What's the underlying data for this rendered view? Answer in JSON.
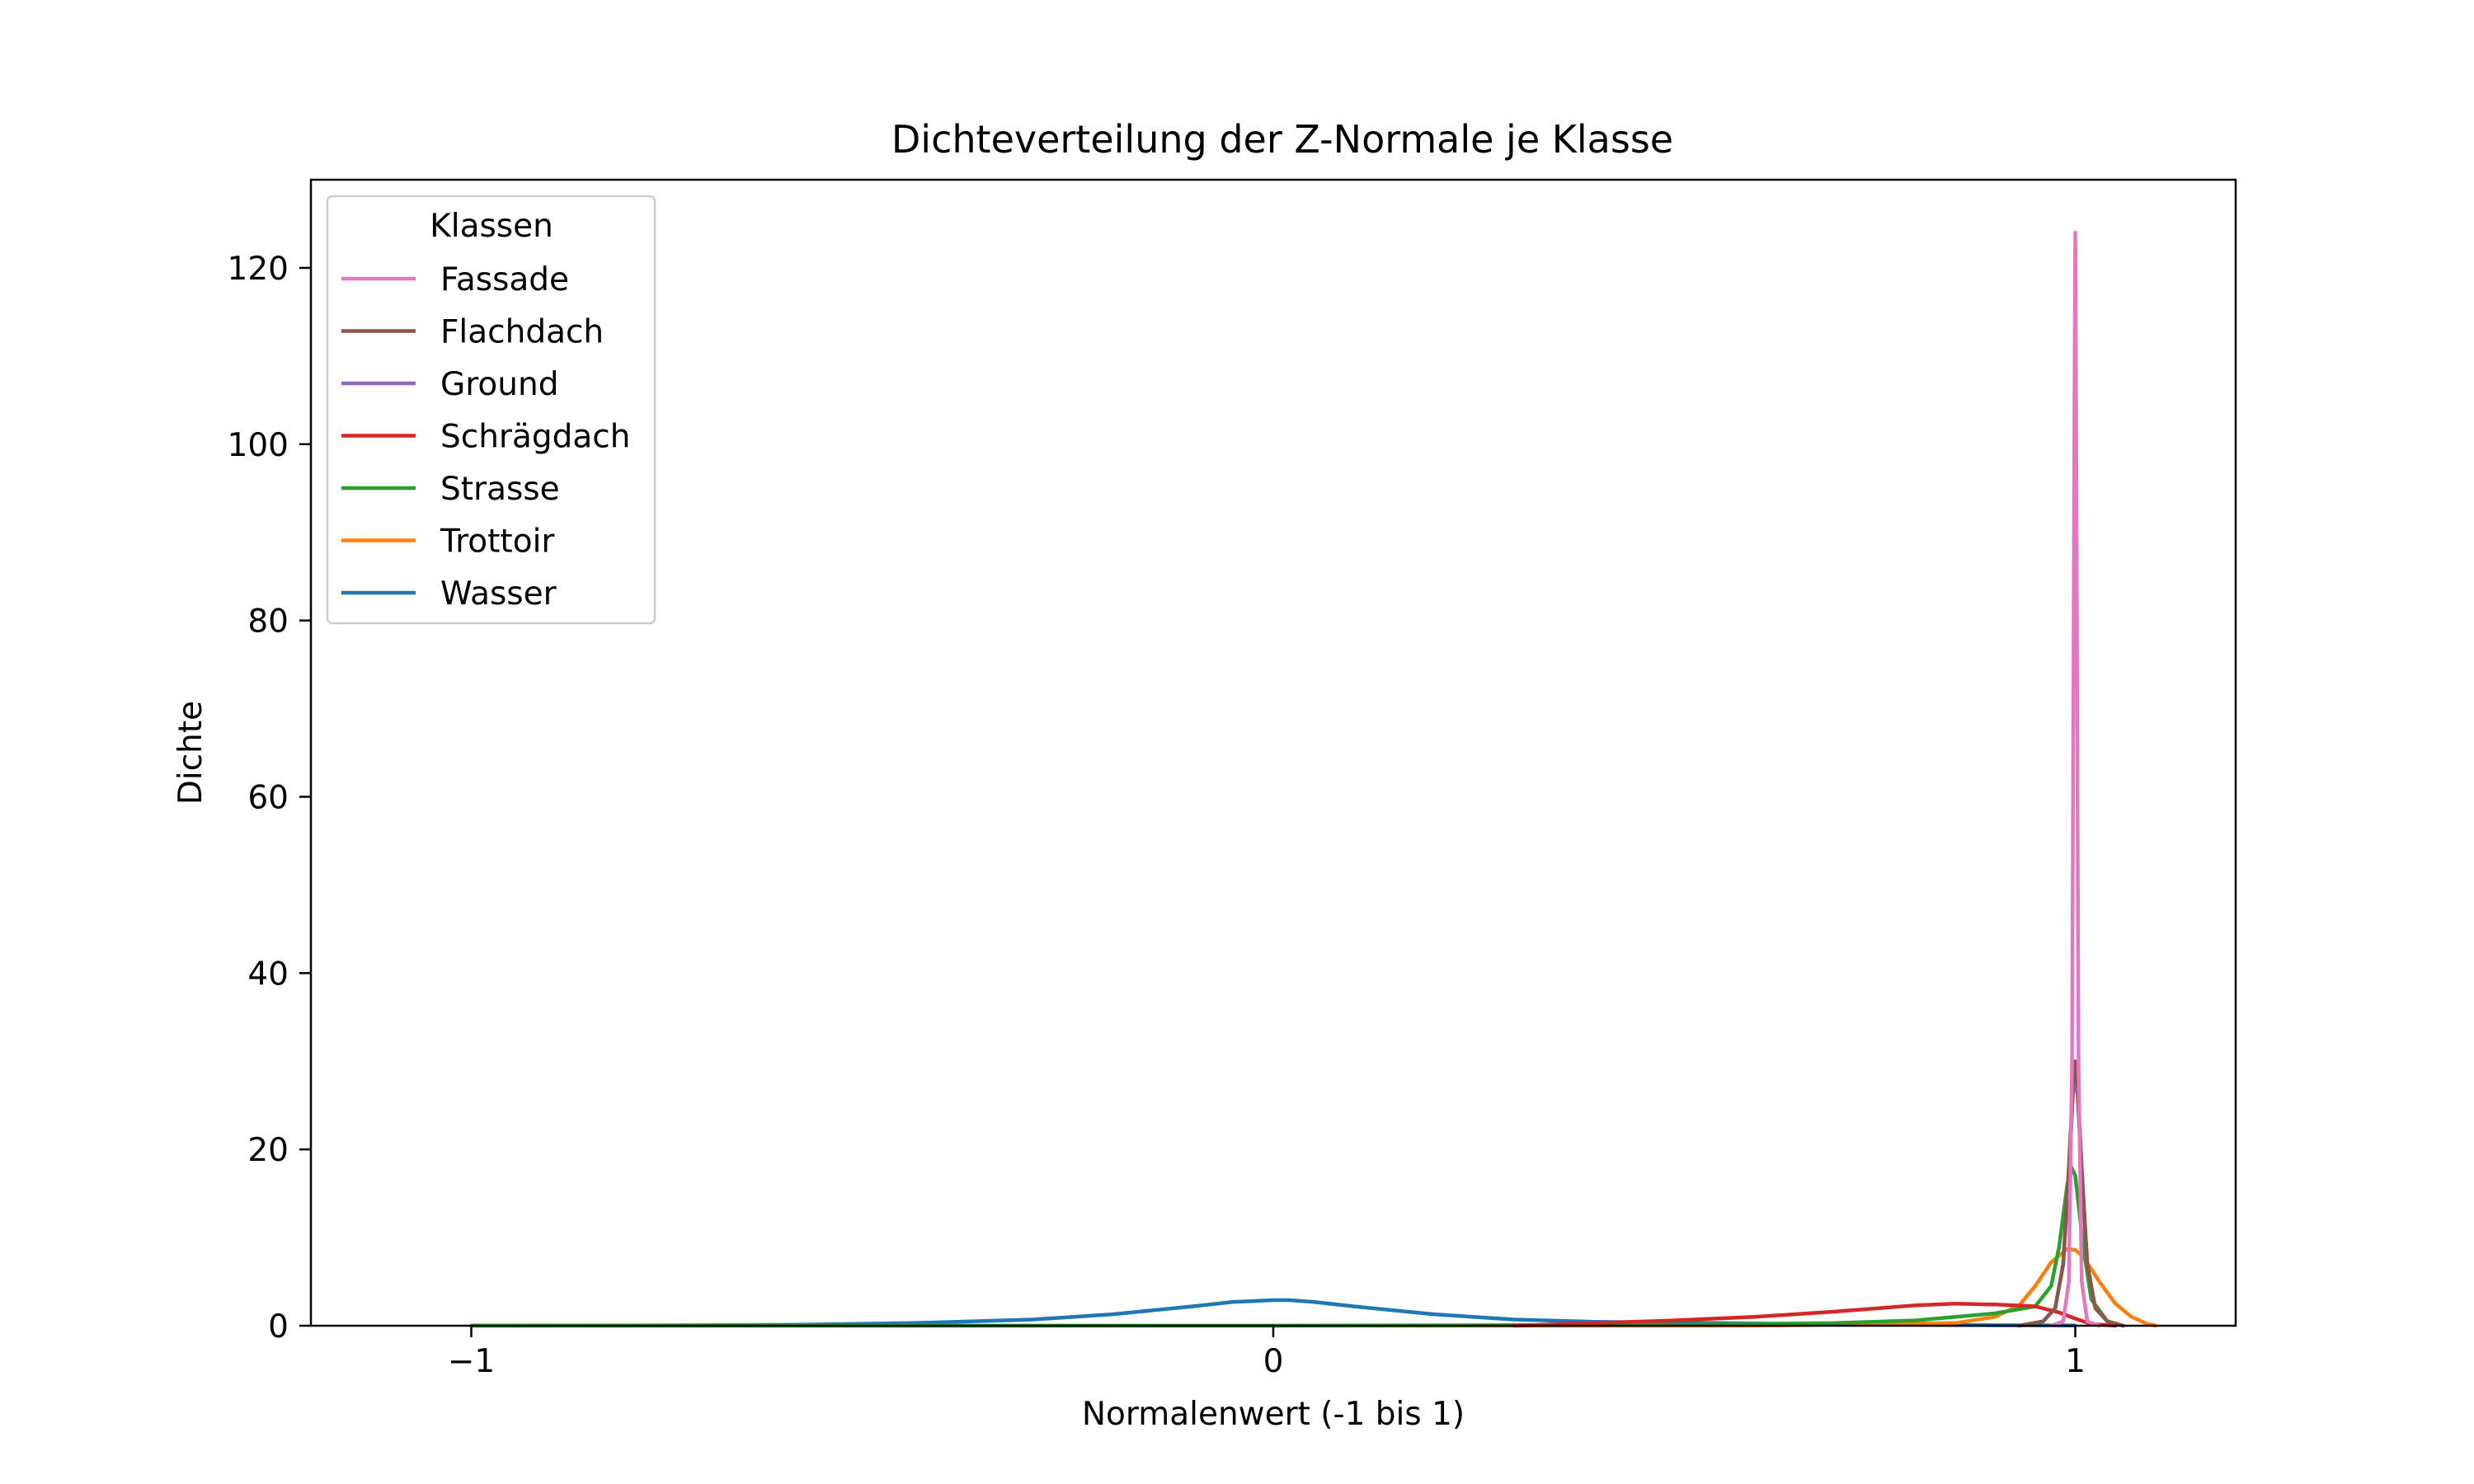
{
  "chart_data": {
    "type": "line",
    "title": "Dichteverteilung der Z-Normale je Klasse",
    "xlabel": "Normalenwert (-1 bis 1)",
    "ylabel": "Dichte",
    "xlim": [
      -1.2,
      1.2
    ],
    "ylim": [
      0,
      130
    ],
    "xticks": [
      -1,
      0,
      1
    ],
    "xtick_labels": [
      "−1",
      "0",
      "1"
    ],
    "yticks": [
      0,
      20,
      40,
      60,
      80,
      100,
      120
    ],
    "ytick_labels": [
      "0",
      "20",
      "40",
      "60",
      "80",
      "100",
      "120"
    ],
    "grid": false,
    "legend": {
      "title": "Klassen",
      "position": "upper left"
    },
    "series": [
      {
        "name": "Fassade",
        "color": "#e377c2",
        "x": [
          0.97,
          0.985,
          0.992,
          0.996,
          0.999,
          1.0,
          1.001,
          1.004,
          1.008,
          1.015,
          1.03
        ],
        "y": [
          0,
          0.5,
          5,
          30,
          105,
          124,
          105,
          30,
          5,
          0.5,
          0
        ]
      },
      {
        "name": "Flachdach",
        "color": "#8c564b",
        "x": [
          0.93,
          0.96,
          0.975,
          0.985,
          0.992,
          0.997,
          1.0,
          1.003,
          1.008,
          1.015,
          1.025,
          1.04,
          1.06
        ],
        "y": [
          0,
          0.5,
          2,
          7,
          18,
          27,
          30,
          27,
          18,
          7,
          2,
          0.5,
          0
        ]
      },
      {
        "name": "Ground",
        "color": "#9467bd",
        "x": [
          0.93,
          0.96,
          0.975,
          0.985,
          0.992,
          0.997,
          1.0,
          1.003,
          1.008,
          1.015,
          1.025,
          1.04,
          1.06
        ],
        "y": [
          0,
          0.5,
          2,
          7,
          17,
          26,
          29,
          26,
          17,
          7,
          2,
          0.5,
          0
        ]
      },
      {
        "name": "Schrägdach",
        "color": "#d62728",
        "x": [
          0.3,
          0.4,
          0.5,
          0.6,
          0.7,
          0.8,
          0.85,
          0.9,
          0.95,
          0.98,
          1.0,
          1.02,
          1.05
        ],
        "y": [
          0,
          0.3,
          0.6,
          1.0,
          1.6,
          2.3,
          2.5,
          2.4,
          2.2,
          1.5,
          0.8,
          0.2,
          0
        ]
      },
      {
        "name": "Strasse",
        "color": "#2ca02c",
        "x": [
          -1.0,
          -0.5,
          0.0,
          0.5,
          0.7,
          0.8,
          0.9,
          0.95,
          0.97,
          0.98,
          0.99,
          0.995,
          1.0,
          1.01,
          1.02,
          1.04,
          1.06
        ],
        "y": [
          0,
          0,
          0,
          0.1,
          0.3,
          0.6,
          1.4,
          2.2,
          4.5,
          9,
          16,
          18,
          17,
          9,
          3,
          0.5,
          0
        ]
      },
      {
        "name": "Trottoir",
        "color": "#ff7f0e",
        "x": [
          -1.0,
          0.0,
          0.6,
          0.85,
          0.9,
          0.93,
          0.95,
          0.97,
          0.99,
          1.0,
          1.01,
          1.03,
          1.05,
          1.07,
          1.09,
          1.1
        ],
        "y": [
          0,
          0,
          0,
          0.3,
          1.0,
          2.3,
          4.5,
          7.2,
          8.7,
          8.6,
          7.8,
          5,
          2.5,
          1,
          0.2,
          0
        ]
      },
      {
        "name": "Wasser",
        "color": "#1f77b4",
        "x": [
          -1.0,
          -0.8,
          -0.6,
          -0.45,
          -0.3,
          -0.2,
          -0.1,
          -0.05,
          0.0,
          0.02,
          0.05,
          0.1,
          0.2,
          0.3,
          0.4,
          0.5,
          0.6,
          0.8,
          1.0
        ],
        "y": [
          0.01,
          0.03,
          0.1,
          0.3,
          0.7,
          1.3,
          2.2,
          2.7,
          2.9,
          2.9,
          2.7,
          2.2,
          1.3,
          0.7,
          0.45,
          0.35,
          0.25,
          0.1,
          0.02
        ]
      }
    ]
  }
}
